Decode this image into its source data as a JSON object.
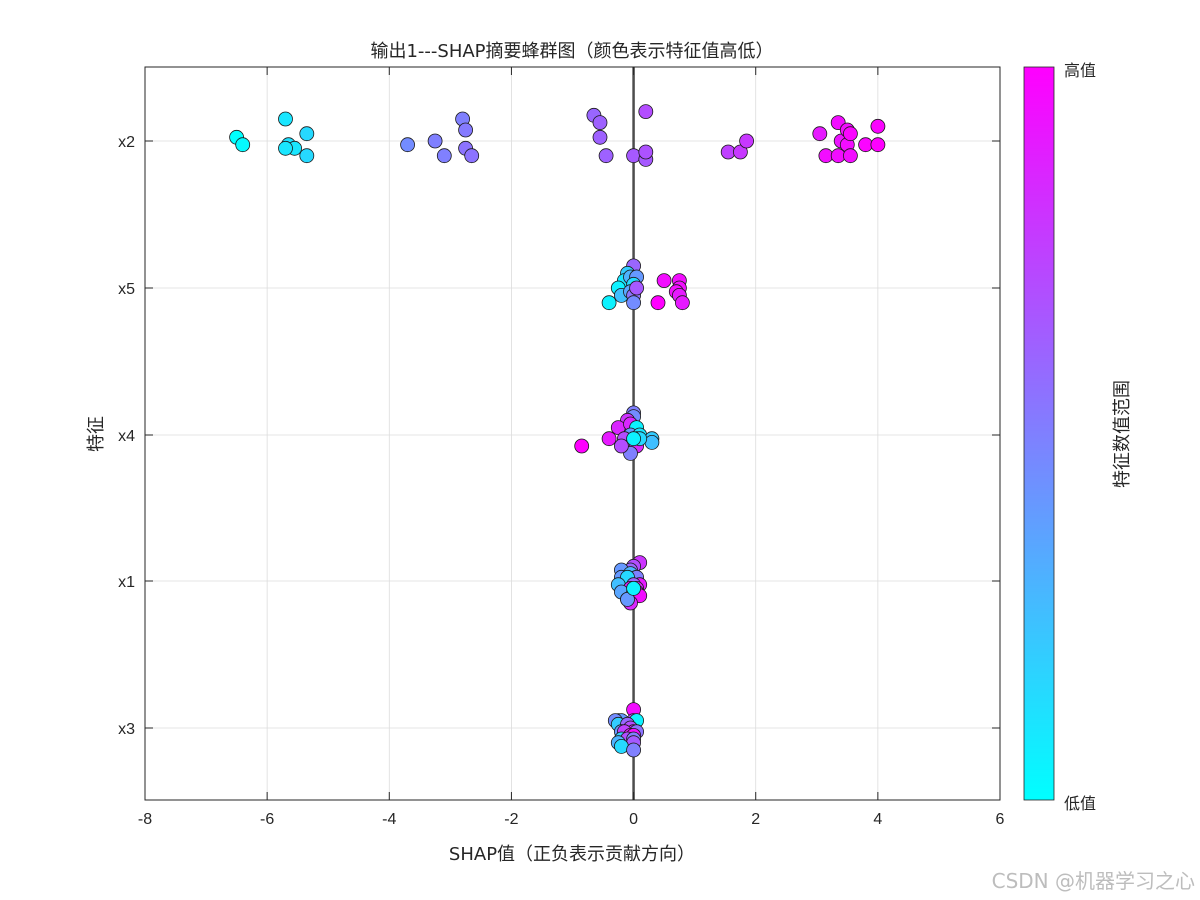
{
  "chart_data": {
    "type": "scatter",
    "title": "输出1---SHAP摘要蜂群图（颜色表示特征值高低）",
    "xlabel": "SHAP值（正负表示贡献方向）",
    "ylabel": "特征",
    "xlim": [
      -8,
      6
    ],
    "xticks": [
      -8,
      -6,
      -4,
      -2,
      0,
      2,
      4,
      6
    ],
    "grid": true,
    "zero_line": 0,
    "features": [
      "x2",
      "x5",
      "x4",
      "x1",
      "x3"
    ],
    "colorbar": {
      "label": "特征数值范围",
      "high_label": "高值",
      "low_label": "低值",
      "colormap": "cool",
      "low_color": "#00ffff",
      "high_color": "#ff00ff"
    },
    "series": [
      {
        "feature": "x2",
        "points": [
          [
            -6.5,
            0.05,
            0.0
          ],
          [
            -6.4,
            -0.05,
            0.02
          ],
          [
            -5.7,
            0.3,
            0.1
          ],
          [
            -5.65,
            -0.05,
            0.12
          ],
          [
            -5.55,
            -0.1,
            0.1
          ],
          [
            -5.35,
            0.1,
            0.15
          ],
          [
            -5.35,
            -0.2,
            0.15
          ],
          [
            -5.7,
            -0.1,
            0.1
          ],
          [
            -3.7,
            -0.05,
            0.45
          ],
          [
            -3.25,
            0.0,
            0.5
          ],
          [
            -3.1,
            -0.2,
            0.5
          ],
          [
            -2.8,
            0.3,
            0.5
          ],
          [
            -2.75,
            0.15,
            0.52
          ],
          [
            -2.75,
            -0.1,
            0.55
          ],
          [
            -2.65,
            -0.2,
            0.55
          ],
          [
            -0.65,
            0.35,
            0.6
          ],
          [
            -0.55,
            0.25,
            0.62
          ],
          [
            -0.55,
            0.05,
            0.62
          ],
          [
            -0.45,
            -0.2,
            0.62
          ],
          [
            0.0,
            -0.2,
            0.65
          ],
          [
            0.2,
            0.4,
            0.7
          ],
          [
            0.2,
            -0.25,
            0.65
          ],
          [
            0.2,
            -0.15,
            0.68
          ],
          [
            1.55,
            -0.15,
            0.75
          ],
          [
            1.75,
            -0.15,
            0.78
          ],
          [
            1.85,
            0.0,
            0.78
          ],
          [
            3.05,
            0.1,
            0.9
          ],
          [
            3.15,
            -0.2,
            0.95
          ],
          [
            3.35,
            0.25,
            0.95
          ],
          [
            3.35,
            -0.2,
            0.95
          ],
          [
            3.4,
            0.0,
            0.92
          ],
          [
            3.5,
            0.15,
            0.95
          ],
          [
            3.5,
            -0.05,
            0.95
          ],
          [
            3.55,
            -0.2,
            0.95
          ],
          [
            3.55,
            0.1,
            0.98
          ],
          [
            3.8,
            -0.05,
            0.98
          ],
          [
            4.0,
            -0.05,
            1.0
          ],
          [
            4.0,
            0.2,
            0.98
          ]
        ]
      },
      {
        "feature": "x5",
        "points": [
          [
            0.0,
            0.3,
            0.6
          ],
          [
            -0.1,
            0.2,
            0.2
          ],
          [
            -0.15,
            0.1,
            0.1
          ],
          [
            -0.05,
            0.15,
            0.3
          ],
          [
            0.05,
            0.15,
            0.4
          ],
          [
            0.0,
            0.05,
            0.15
          ],
          [
            -0.25,
            0.0,
            0.05
          ],
          [
            -0.2,
            -0.1,
            0.25
          ],
          [
            -0.05,
            -0.05,
            0.35
          ],
          [
            0.0,
            -0.1,
            0.55
          ],
          [
            0.05,
            0.0,
            0.65
          ],
          [
            -0.4,
            -0.2,
            0.05
          ],
          [
            0.0,
            -0.2,
            0.45
          ],
          [
            0.5,
            0.1,
            0.95
          ],
          [
            0.75,
            0.1,
            0.95
          ],
          [
            0.75,
            0.0,
            0.95
          ],
          [
            0.7,
            -0.05,
            0.95
          ],
          [
            0.75,
            -0.1,
            0.9
          ],
          [
            0.8,
            -0.2,
            0.9
          ],
          [
            0.4,
            -0.2,
            1.0
          ]
        ]
      },
      {
        "feature": "x4",
        "points": [
          [
            0.0,
            0.3,
            0.5
          ],
          [
            0.0,
            0.25,
            0.45
          ],
          [
            -0.1,
            0.2,
            0.8
          ],
          [
            -0.25,
            0.1,
            0.85
          ],
          [
            -0.05,
            0.15,
            0.85
          ],
          [
            0.05,
            0.1,
            0.05
          ],
          [
            -0.05,
            0.0,
            0.4
          ],
          [
            0.1,
            0.0,
            0.1
          ],
          [
            -0.4,
            -0.05,
            0.9
          ],
          [
            -0.15,
            -0.05,
            0.7
          ],
          [
            0.05,
            -0.05,
            0.3
          ],
          [
            0.3,
            -0.05,
            0.2
          ],
          [
            0.3,
            -0.1,
            0.25
          ],
          [
            0.0,
            -0.1,
            0.25
          ],
          [
            -0.05,
            -0.15,
            0.6
          ],
          [
            0.05,
            -0.15,
            0.85
          ],
          [
            -0.85,
            -0.15,
            1.0
          ],
          [
            -0.05,
            -0.25,
            0.5
          ],
          [
            0.1,
            -0.05,
            0.15
          ],
          [
            -0.2,
            -0.15,
            0.7
          ],
          [
            0.0,
            -0.05,
            0.05
          ]
        ]
      },
      {
        "feature": "x1",
        "points": [
          [
            0.1,
            0.25,
            0.8
          ],
          [
            0.0,
            0.2,
            0.7
          ],
          [
            -0.05,
            0.15,
            0.6
          ],
          [
            -0.2,
            0.15,
            0.4
          ],
          [
            -0.05,
            0.1,
            0.3
          ],
          [
            0.05,
            0.05,
            0.5
          ],
          [
            -0.2,
            0.05,
            0.4
          ],
          [
            -0.1,
            0.05,
            0.15
          ],
          [
            -0.25,
            -0.05,
            0.25
          ],
          [
            0.1,
            -0.05,
            0.9
          ],
          [
            0.0,
            -0.05,
            0.6
          ],
          [
            -0.05,
            -0.1,
            0.85
          ],
          [
            0.05,
            -0.1,
            0.85
          ],
          [
            -0.2,
            -0.15,
            0.35
          ],
          [
            0.0,
            -0.15,
            0.95
          ],
          [
            0.05,
            -0.15,
            0.9
          ],
          [
            0.1,
            -0.2,
            0.95
          ],
          [
            -0.1,
            -0.25,
            0.15
          ],
          [
            -0.05,
            -0.3,
            0.85
          ],
          [
            -0.1,
            -0.25,
            0.4
          ],
          [
            0.0,
            -0.1,
            0.05
          ]
        ]
      },
      {
        "feature": "x3",
        "points": [
          [
            0.0,
            0.25,
            0.95
          ],
          [
            -0.25,
            0.1,
            0.5
          ],
          [
            -0.2,
            0.1,
            0.4
          ],
          [
            -0.3,
            0.1,
            0.45
          ],
          [
            0.0,
            0.1,
            0.7
          ],
          [
            0.05,
            0.1,
            0.05
          ],
          [
            -0.25,
            0.05,
            0.2
          ],
          [
            -0.1,
            0.05,
            0.6
          ],
          [
            -0.05,
            0.0,
            0.7
          ],
          [
            0.0,
            -0.05,
            0.85
          ],
          [
            -0.2,
            -0.05,
            0.4
          ],
          [
            -0.15,
            -0.05,
            0.75
          ],
          [
            0.05,
            -0.05,
            0.55
          ],
          [
            -0.05,
            -0.1,
            0.9
          ],
          [
            0.0,
            -0.1,
            0.95
          ],
          [
            -0.2,
            -0.15,
            0.2
          ],
          [
            -0.1,
            -0.15,
            0.7
          ],
          [
            0.0,
            -0.15,
            0.5
          ],
          [
            -0.25,
            -0.2,
            0.3
          ],
          [
            0.0,
            -0.2,
            0.65
          ],
          [
            -0.2,
            -0.25,
            0.15
          ],
          [
            0.0,
            -0.3,
            0.5
          ]
        ]
      }
    ]
  },
  "watermark": "CSDN @机器学习之心"
}
